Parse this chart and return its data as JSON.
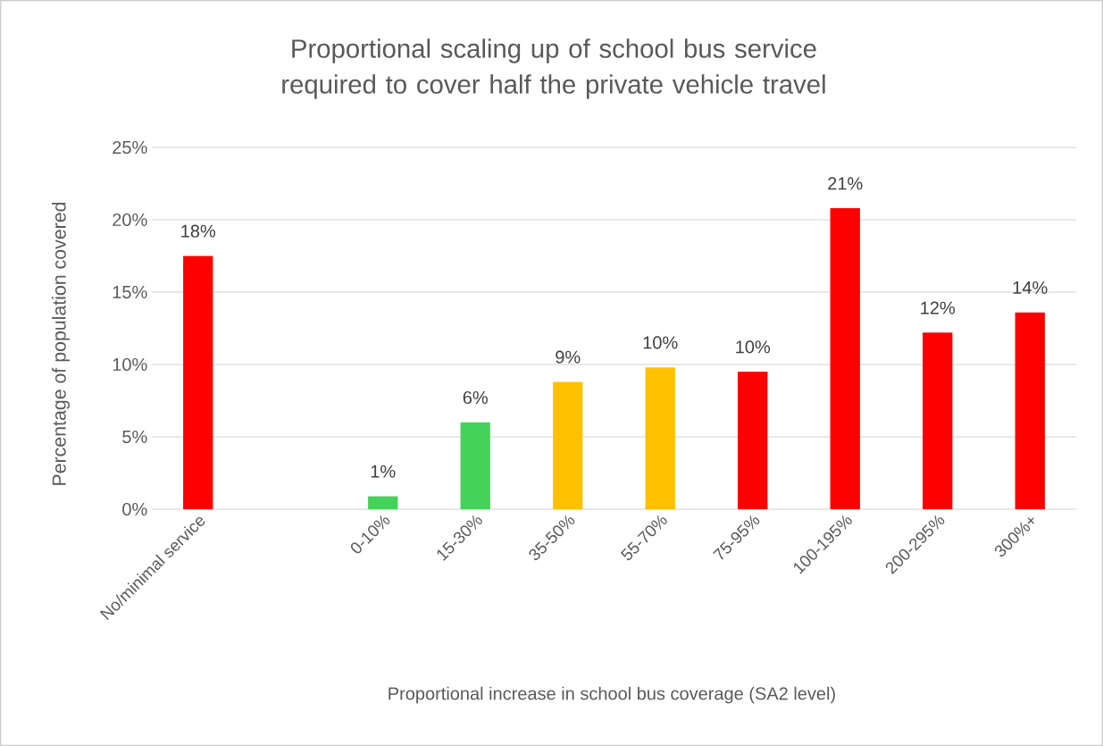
{
  "chart_data": {
    "type": "bar",
    "title": "Proportional scaling up of school bus service required to cover half the private vehicle travel",
    "xlabel": "Proportional increase  in school bus coverage  (SA2 level)",
    "ylabel": "Percentage  of population covered",
    "categories": [
      "No/minimal service",
      null,
      "0-10%",
      "15-30%",
      "35-50%",
      "55-70%",
      "75-95%",
      "100-195%",
      "200-295%",
      "300%+"
    ],
    "values": [
      17.5,
      null,
      0.9,
      6.0,
      8.8,
      9.8,
      9.5,
      20.8,
      12.2,
      13.6
    ],
    "value_labels": [
      "18%",
      null,
      "1%",
      "6%",
      "9%",
      "10%",
      "10%",
      "21%",
      "12%",
      "14%"
    ],
    "colors": [
      "#ff0000",
      "#ff0000",
      "#44d35a",
      "#44d35a",
      "#ffc000",
      "#ffc000",
      "#ff0000",
      "#ff0000",
      "#ff0000",
      "#ff0000"
    ],
    "ylim": [
      0,
      25
    ],
    "yticks": [
      {
        "value": 0,
        "label": "0%"
      },
      {
        "value": 5,
        "label": "5%"
      },
      {
        "value": 10,
        "label": "10%"
      },
      {
        "value": 15,
        "label": "15%"
      },
      {
        "value": 20,
        "label": "20%"
      },
      {
        "value": 25,
        "label": "25%"
      }
    ],
    "grid": "y"
  }
}
